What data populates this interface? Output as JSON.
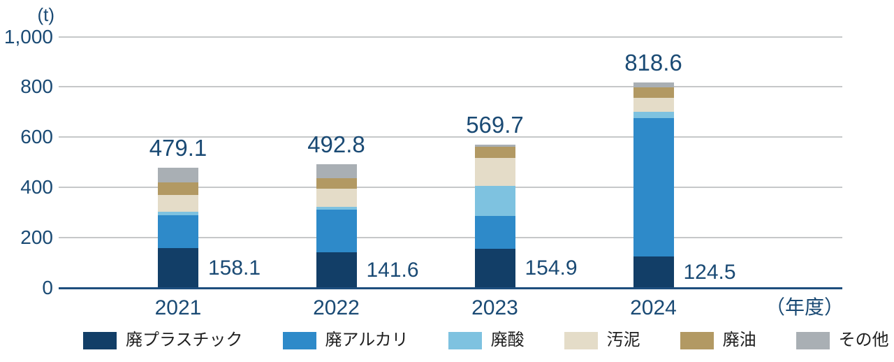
{
  "chart_data": {
    "type": "bar",
    "stacked": true,
    "unit_label": "(t)",
    "x_unit_label": "（年度）",
    "categories": [
      "2021",
      "2022",
      "2023",
      "2024"
    ],
    "series": [
      {
        "name": "廃プラスチック",
        "color": "#123e67",
        "values": [
          158.1,
          141.6,
          154.9,
          124.5
        ]
      },
      {
        "name": "廃アルカリ",
        "color": "#2e8ac9",
        "values": [
          130.7,
          168.6,
          131.2,
          551.4
        ]
      },
      {
        "name": "廃酸",
        "color": "#7ec2e0",
        "values": [
          13.9,
          13.1,
          120.6,
          25.1
        ]
      },
      {
        "name": "汚泥",
        "color": "#e4dcc8",
        "values": [
          67.7,
          72.4,
          109.5,
          55.7
        ]
      },
      {
        "name": "廃油",
        "color": "#b29963",
        "values": [
          50.1,
          41.0,
          44.6,
          40.7
        ]
      },
      {
        "name": "その他",
        "color": "#a9afb4",
        "values": [
          58.6,
          56.1,
          8.9,
          21.2
        ]
      }
    ],
    "totals": [
      479.1,
      492.8,
      569.7,
      818.6
    ],
    "total_labels": [
      "479.1",
      "492.8",
      "569.7",
      "818.6"
    ],
    "first_segment_labels": [
      "158.1",
      "141.6",
      "154.9",
      "124.5"
    ],
    "y_axis": {
      "max": 1000,
      "ticks": [
        0,
        200,
        400,
        600,
        800,
        1000
      ],
      "tick_labels": [
        "0",
        "200",
        "400",
        "600",
        "800",
        "1,000"
      ],
      "grid": true
    },
    "legend_position": "bottom",
    "legend_items": [
      "廃プラスチック",
      "廃アルカリ",
      "廃酸",
      "汚泥",
      "廃油",
      "その他"
    ]
  },
  "colors": {
    "axis_text": "#1a4a74",
    "gridline": "#c6c8c9",
    "baseline": "#1d4e7d",
    "legend_text": "#1f1f1f",
    "background": "#ffffff"
  }
}
